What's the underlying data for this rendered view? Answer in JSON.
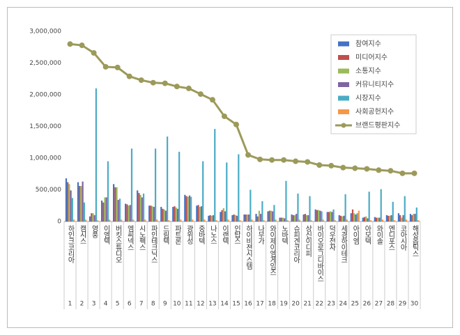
{
  "chart_data": {
    "type": "bar",
    "categories": [
      "하인크코리아",
      "캠시스",
      "영풍",
      "이엠텍",
      "버킷스튜디오",
      "엠씨넥스",
      "시노펙스",
      "파인테크닉스",
      "드림텍",
      "파트론",
      "광위성",
      "중바텍",
      "나노스",
      "이랜텍",
      "인탑스",
      "하이비젼시스템",
      "나무가",
      "와이제이엠게임즈",
      "노바텍",
      "슈피겐코리아",
      "상신이디피",
      "바이오로그디바이스",
      "덕우전자",
      "세경하이테크",
      "아이엠",
      "아모텍",
      "와이솔",
      "엔디포스",
      "코아시아",
      "해성옵틱스"
    ],
    "ranks": [
      1,
      2,
      3,
      4,
      5,
      6,
      7,
      8,
      9,
      10,
      11,
      12,
      13,
      14,
      15,
      16,
      17,
      18,
      19,
      20,
      21,
      22,
      23,
      24,
      25,
      26,
      27,
      28,
      29,
      30
    ],
    "series": [
      {
        "name": "참여지수",
        "color": "#4472c4",
        "kind": "bar",
        "values": [
          680000,
          620000,
          80000,
          330000,
          590000,
          280000,
          490000,
          250000,
          230000,
          230000,
          420000,
          250000,
          90000,
          150000,
          100000,
          110000,
          120000,
          160000,
          60000,
          110000,
          110000,
          190000,
          150000,
          100000,
          130000,
          60000,
          70000,
          100000,
          130000,
          120000
        ]
      },
      {
        "name": "미디어지수",
        "color": "#c0504d",
        "kind": "bar",
        "values": [
          620000,
          560000,
          130000,
          300000,
          540000,
          270000,
          450000,
          250000,
          200000,
          240000,
          400000,
          260000,
          100000,
          180000,
          110000,
          110000,
          80000,
          170000,
          60000,
          100000,
          120000,
          180000,
          150000,
          90000,
          190000,
          70000,
          60000,
          90000,
          100000,
          100000
        ]
      },
      {
        "name": "소통지수",
        "color": "#9bbb59",
        "kind": "bar",
        "values": [
          590000,
          560000,
          130000,
          380000,
          540000,
          250000,
          420000,
          240000,
          190000,
          220000,
          390000,
          230000,
          90000,
          210000,
          100000,
          110000,
          170000,
          170000,
          60000,
          100000,
          100000,
          180000,
          160000,
          80000,
          130000,
          80000,
          60000,
          90000,
          60000,
          120000
        ]
      },
      {
        "name": "커뮤니티지수",
        "color": "#8064a2",
        "kind": "bar",
        "values": [
          490000,
          630000,
          100000,
          380000,
          340000,
          260000,
          380000,
          230000,
          170000,
          200000,
          410000,
          240000,
          100000,
          160000,
          90000,
          110000,
          120000,
          160000,
          50000,
          120000,
          100000,
          170000,
          150000,
          90000,
          110000,
          50000,
          60000,
          100000,
          100000,
          120000
        ]
      },
      {
        "name": "시장지수",
        "color": "#4bacc6",
        "kind": "bar",
        "values": [
          370000,
          300000,
          2100000,
          950000,
          360000,
          1150000,
          440000,
          1150000,
          1340000,
          1100000,
          390000,
          950000,
          1460000,
          930000,
          1060000,
          500000,
          320000,
          260000,
          640000,
          440000,
          400000,
          160000,
          190000,
          430000,
          130000,
          470000,
          510000,
          310000,
          400000,
          220000
        ]
      },
      {
        "name": "사회공헌지수",
        "color": "#f79646",
        "kind": "bar",
        "values": [
          30000,
          30000,
          20000,
          30000,
          30000,
          30000,
          30000,
          30000,
          20000,
          30000,
          30000,
          30000,
          20000,
          30000,
          20000,
          30000,
          20000,
          30000,
          20000,
          30000,
          20000,
          30000,
          20000,
          30000,
          170000,
          20000,
          30000,
          20000,
          30000,
          20000
        ]
      },
      {
        "name": "브랜드평판지수",
        "color": "#9c9a5a",
        "kind": "line",
        "values": [
          2800000,
          2780000,
          2660000,
          2440000,
          2430000,
          2290000,
          2230000,
          2190000,
          2180000,
          2130000,
          2100000,
          2010000,
          1920000,
          1660000,
          1530000,
          1050000,
          980000,
          970000,
          970000,
          950000,
          940000,
          890000,
          880000,
          850000,
          840000,
          830000,
          810000,
          800000,
          760000,
          760000
        ]
      }
    ],
    "ylim": [
      0,
      3000000
    ],
    "yticks": [
      0,
      {
        "value": 500000,
        "label": "500,000"
      },
      {
        "value": 1000000,
        "label": "1,000,000"
      },
      {
        "value": 1500000,
        "label": "1,500,000"
      },
      {
        "value": 2000000,
        "label": "2,000,000"
      },
      {
        "value": 2500000,
        "label": "2,500,000"
      },
      {
        "value": 3000000,
        "label": "3,000,000"
      }
    ],
    "grid": false,
    "legend": "top-right"
  }
}
